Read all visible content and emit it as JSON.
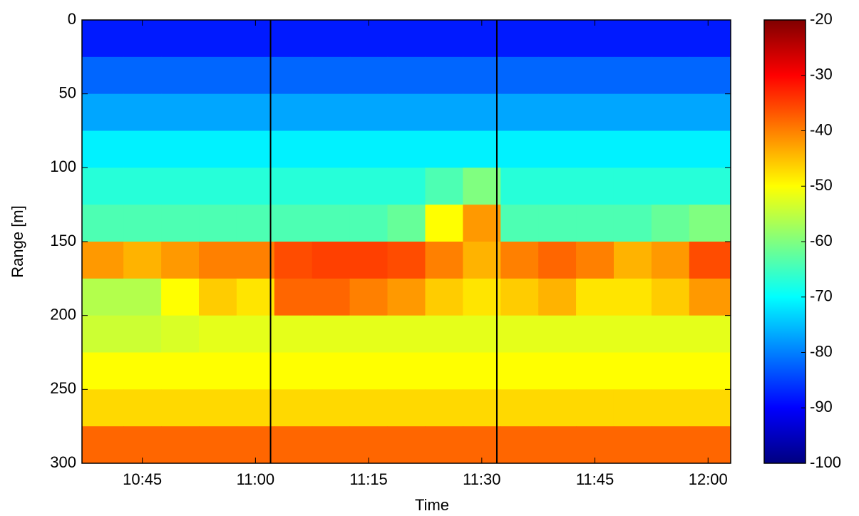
{
  "chart_data": {
    "type": "heatmap",
    "xlabel": "Time",
    "ylabel": "Range [m]",
    "x": [
      "10:40",
      "10:45",
      "10:50",
      "10:55",
      "11:00",
      "11:05",
      "11:10",
      "11:15",
      "11:20",
      "11:25",
      "11:30",
      "11:35",
      "11:40",
      "11:45",
      "11:50",
      "11:55",
      "12:00"
    ],
    "xlim": [
      "10:37",
      "12:03"
    ],
    "xticks": [
      "10:45",
      "11:00",
      "11:15",
      "11:30",
      "11:45",
      "12:00"
    ],
    "y": [
      0,
      25,
      50,
      75,
      100,
      125,
      150,
      175,
      200,
      225,
      250,
      275
    ],
    "ylim": [
      0,
      300
    ],
    "yticks": [
      0,
      50,
      100,
      150,
      200,
      250,
      300
    ],
    "y_reversed": true,
    "vlines": [
      "11:02",
      "11:32"
    ],
    "vline_color": "#000000",
    "z": [
      [
        -88,
        -88,
        -88,
        -88,
        -88,
        -88,
        -88,
        -88,
        -88,
        -88,
        -88,
        -88,
        -88,
        -88,
        -88,
        -88,
        -88
      ],
      [
        -82,
        -82,
        -82,
        -82,
        -82,
        -82,
        -82,
        -82,
        -82,
        -82,
        -82,
        -82,
        -82,
        -82,
        -82,
        -82,
        -82
      ],
      [
        -77,
        -77,
        -77,
        -77,
        -77,
        -77,
        -77,
        -77,
        -77,
        -77,
        -77,
        -77,
        -77,
        -77,
        -77,
        -77,
        -77
      ],
      [
        -71,
        -71,
        -71,
        -71,
        -71,
        -71,
        -71,
        -71,
        -71,
        -71,
        -71,
        -71,
        -71,
        -71,
        -71,
        -71,
        -71
      ],
      [
        -67,
        -67,
        -67,
        -67,
        -67,
        -67,
        -67,
        -67,
        -67,
        -64,
        -60,
        -67,
        -67,
        -67,
        -67,
        -67,
        -67
      ],
      [
        -64,
        -64,
        -64,
        -64,
        -64,
        -64,
        -64,
        -64,
        -62,
        -50,
        -42,
        -64,
        -64,
        -64,
        -64,
        -62,
        -60
      ],
      [
        -42,
        -44,
        -42,
        -40,
        -40,
        -36,
        -35,
        -35,
        -36,
        -40,
        -44,
        -40,
        -38,
        -40,
        -44,
        -42,
        -36
      ],
      [
        -56,
        -56,
        -50,
        -46,
        -48,
        -38,
        -38,
        -40,
        -42,
        -46,
        -48,
        -46,
        -44,
        -48,
        -48,
        -46,
        -42
      ],
      [
        -54,
        -54,
        -53,
        -52,
        -52,
        -52,
        -52,
        -52,
        -52,
        -52,
        -52,
        -52,
        -52,
        -52,
        -52,
        -52,
        -52
      ],
      [
        -50,
        -50,
        -50,
        -50,
        -50,
        -50,
        -50,
        -50,
        -50,
        -50,
        -50,
        -50,
        -50,
        -50,
        -50,
        -50,
        -50
      ],
      [
        -47,
        -47,
        -47,
        -47,
        -47,
        -47,
        -47,
        -47,
        -47,
        -47,
        -47,
        -47,
        -47,
        -47,
        -47,
        -47,
        -47
      ],
      [
        -38,
        -38,
        -38,
        -38,
        -38,
        -38,
        -38,
        -38,
        -38,
        -38,
        -38,
        -38,
        -38,
        -38,
        -38,
        -38,
        -38
      ]
    ],
    "colormap": "jet",
    "clim": [
      -100,
      -20
    ],
    "cticks": [
      -100,
      -90,
      -80,
      -70,
      -60,
      -50,
      -40,
      -30,
      -20
    ]
  }
}
